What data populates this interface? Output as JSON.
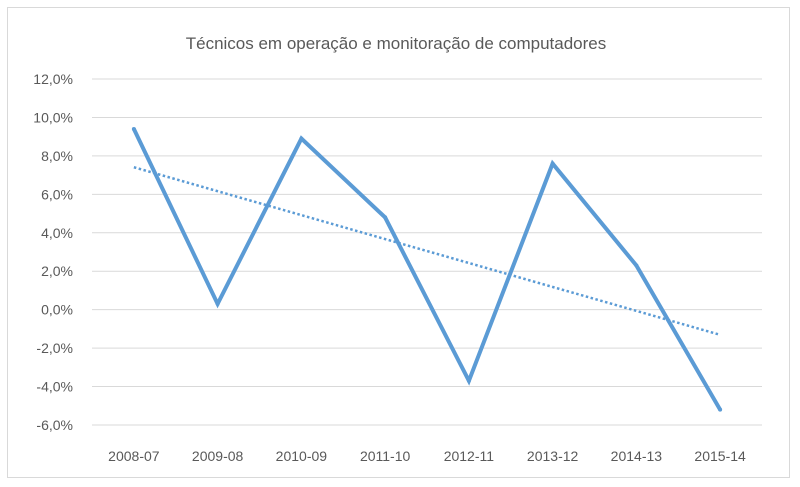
{
  "chart_data": {
    "type": "line",
    "title": "Técnicos em operação e monitoração de computadores",
    "xlabel": "",
    "ylabel": "",
    "categories": [
      "2008-07",
      "2009-08",
      "2010-09",
      "2011-10",
      "2012-11",
      "2013-12",
      "2014-13",
      "2015-14"
    ],
    "series": [
      {
        "values": [
          9.4,
          0.3,
          8.9,
          4.8,
          -3.7,
          7.6,
          2.3,
          -5.2
        ],
        "color": "#5b9bd5"
      }
    ],
    "trendline": {
      "type": "linear",
      "style": "dotted",
      "color": "#5b9bd5"
    },
    "ylim": [
      -6,
      12
    ],
    "ytick_step": 2,
    "yticks": [
      "12,0%",
      "10,0%",
      "8,0%",
      "6,0%",
      "4,0%",
      "2,0%",
      "0,0%",
      "-2,0%",
      "-4,0%",
      "-6,0%"
    ],
    "grid": true,
    "legend": "none"
  }
}
